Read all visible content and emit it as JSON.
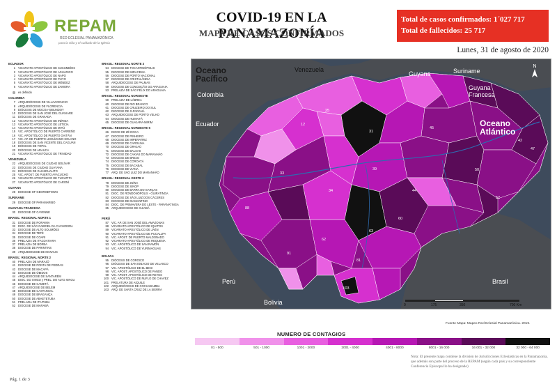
{
  "header": {
    "brand": "REPAM",
    "brand_sub": "RED ECLESIAL PANAMAZÓNICA",
    "brand_tag": "para la vida y el cuidado de la Iglesia",
    "title": "COVID-19 EN LA PANAMAZONÍA",
    "subtitle": "MAPA DE CASOS CONFIRMADOS",
    "confirmed": "Total de casos confirmados: 1´027 717",
    "deaths": "Total de fallecidos: 25 717",
    "date": "Lunes, 31 de agosto de 2020"
  },
  "map": {
    "ocean_pacific": "Oceano Pacífico",
    "ocean_atlantic": "Oceano Atlántico",
    "countries": [
      "Venezuela",
      "Colombia",
      "Guyana",
      "Suriname",
      "Guyana Francesa",
      "Ecuador",
      "Perú",
      "Bolivia",
      "Brasil"
    ],
    "scale": [
      "0",
      "175",
      "350",
      "700 Km"
    ],
    "source": "Fuente Mapa: Mapeo Red Eclesial Panamazónica. 2019."
  },
  "legend": {
    "title": "NUMERO DE CONTAGIOS",
    "bins": [
      "01 - 500",
      "501 - 1000",
      "1001 - 2000",
      "2001 - 4000",
      "4001 - 8000",
      "8001 - 16 000",
      "16 001 - 32 000",
      "32 000 - 64 000"
    ],
    "colors": [
      "#f6c8f2",
      "#f091ea",
      "#e85fe0",
      "#d630cf",
      "#b617b4",
      "#8a1087",
      "#5a0b58",
      "#111111"
    ]
  },
  "note": "Nota: El presente mapa contiene la división de Jurisdicciones Eclesiásticas en la Panamazonía, que además son parte del proceso de la REPAM (según cada país y su correspondiente Conferencia Episcopal lo ha designado)",
  "page": "Pág. 1 de 3",
  "columns": [
    [
      {
        "type": "sec",
        "text": "ECUADOR"
      },
      {
        "type": "ent",
        "n": "1",
        "text": "VICARIATO APOSTÓLICO DE SUCUMBÍOS"
      },
      {
        "type": "ent",
        "n": "2",
        "text": "VICARIATO APOSTÓLICO DE AGUARICO"
      },
      {
        "type": "ent",
        "n": "3",
        "text": "VICARIATO APOSTÓLICO DE NAPO"
      },
      {
        "type": "ent",
        "n": "4",
        "text": "VICARIATO APOSTÓLICO DE PUYO"
      },
      {
        "type": "ent",
        "n": "5",
        "text": "VICARIATO APOSTÓLICO DE MÉNDEZ"
      },
      {
        "type": "ent",
        "n": "6",
        "text": "VICARIATO APOSTÓLICO DE ZAMORA"
      },
      {
        "type": "gap"
      },
      {
        "type": "ent",
        "n": "▨",
        "text": "es definido"
      },
      {
        "type": "sec",
        "text": "COLOMBIA"
      },
      {
        "type": "ent",
        "n": "7",
        "text": "ARQUIDIÓCESIS DE VILLAVICENCIO"
      },
      {
        "type": "ent",
        "n": "8",
        "text": "ARQUIDIÓCESIS DE FLORENCIA"
      },
      {
        "type": "ent",
        "n": "9",
        "text": "DIÓCESIS DE MOCOA-SIBUNDOY"
      },
      {
        "type": "ent",
        "n": "10",
        "text": "DIÓCESIS DE SAN JOSÉ DEL GUAVIARE"
      },
      {
        "type": "ent",
        "n": "11",
        "text": "DIÓCESIS DE GRANADA"
      },
      {
        "type": "ent",
        "n": "12",
        "text": "VICARIATO APOSTÓLICO DE INÍRIDA"
      },
      {
        "type": "ent",
        "n": "13",
        "text": "VICARIATO APOSTÓLICO DE LETICIA"
      },
      {
        "type": "ent",
        "n": "14",
        "text": "VICARIATO APOSTÓLICO DE MITÚ"
      },
      {
        "type": "ent",
        "n": "15",
        "text": "VIC. APOSTÓLICO DE PUERTO CARREÑO"
      },
      {
        "type": "ent",
        "n": "16",
        "text": "VIC. APOSTÓLICO DE PUERTO GAITÁN"
      },
      {
        "type": "ent",
        "n": "17",
        "text": "VIC. AP. DE PUERTO LEGUÍZAMO-SOLANO"
      },
      {
        "type": "ent",
        "n": "18",
        "text": "DIÓCESIS DE SAN VICENTE DEL CAGUÁN"
      },
      {
        "type": "ent",
        "n": "19",
        "text": "DIÓCESIS DE YOPAL"
      },
      {
        "type": "ent",
        "n": "20",
        "text": "DIÓCESIS DE ARAUCA"
      },
      {
        "type": "ent",
        "n": "21",
        "text": "VICARIATO APOSTÓLICO DE TRINIDAD"
      },
      {
        "type": "sec",
        "text": "VENEZUELA"
      },
      {
        "type": "ent",
        "n": "22",
        "text": "ARQUIDIÓCESIS DE CIUDAD BOLÍVAR"
      },
      {
        "type": "ent",
        "n": "23",
        "text": "DIÓCESIS DE CIUDAD GUAYANA"
      },
      {
        "type": "ent",
        "n": "24",
        "text": "DIÓCESIS DE GUASDUALITO"
      },
      {
        "type": "ent",
        "n": "25",
        "text": "VIC. APOST. DE PUERTO AYACUCHO"
      },
      {
        "type": "ent",
        "n": "26",
        "text": "VICARIATO APOSTÓLICO DE TUCUPITA"
      },
      {
        "type": "ent",
        "n": "27",
        "text": "VICARIATO APOSTÓLICO DE CARONÍ"
      },
      {
        "type": "sec",
        "text": "GUYANA"
      },
      {
        "type": "ent",
        "n": "28",
        "text": "DIOCESE OF GEORGETOWN"
      },
      {
        "type": "sec",
        "text": "SURINAME"
      },
      {
        "type": "ent",
        "n": "29",
        "text": "DIOCESE OF PARAMARIBO"
      },
      {
        "type": "sec",
        "text": "GUAYANA FRANCESA"
      },
      {
        "type": "ent",
        "n": "30",
        "text": "DIOCESE OF CAYENNE"
      },
      {
        "type": "sec",
        "text": "BRASIL: REGIONAL NORTE 1"
      },
      {
        "type": "ent",
        "n": "31",
        "text": "DIOCESE DE RORAIMA"
      },
      {
        "type": "ent",
        "n": "32",
        "text": "DIOC. DE SÃO GABRIEL DA CACHOEIRA"
      },
      {
        "type": "ent",
        "n": "33",
        "text": "DIOCESE DE ALTO SOLIMÕES"
      },
      {
        "type": "ent",
        "n": "34",
        "text": "DIOCESE DE TEFÉ"
      },
      {
        "type": "ent",
        "n": "35",
        "text": "DIOCESE DE COARI"
      },
      {
        "type": "ent",
        "n": "36",
        "text": "PRELAZIA DE ITACOATIARA"
      },
      {
        "type": "ent",
        "n": "37",
        "text": "PRELAZIA DE BORBA"
      },
      {
        "type": "ent",
        "n": "38",
        "text": "DIOCESE DE PARINTINS"
      },
      {
        "type": "ent",
        "n": "39",
        "text": "ARQUIDIOCESE DE MANAUS"
      },
      {
        "type": "sec",
        "text": "BRASIL: REGIONAL NORTE 2"
      },
      {
        "type": "ent",
        "n": "40",
        "text": "PRELAZIA DE MARAJÓ"
      },
      {
        "type": "ent",
        "n": "41",
        "text": "DIOCESE DE PONTA DE PEDRAS"
      },
      {
        "type": "ent",
        "n": "42",
        "text": "DIOCESE DE MACAPÁ"
      },
      {
        "type": "ent",
        "n": "43",
        "text": "DIOCESE DE ÓBIDOS"
      },
      {
        "type": "ent",
        "n": "44",
        "text": "ARQUIDIOCESE DE SANTARÉM"
      },
      {
        "type": "ent",
        "n": "45",
        "text": "DIOC. DO XINGU y PREL. DO ALTO XINGU"
      },
      {
        "type": "ent",
        "n": "46",
        "text": "DIOCESE DE CAMETÁ"
      },
      {
        "type": "ent",
        "n": "47",
        "text": "ARQUIDIOCESE DE BELÉM"
      },
      {
        "type": "ent",
        "n": "48",
        "text": "DIOCESE DE CASTANHAL"
      },
      {
        "type": "ent",
        "n": "49",
        "text": "DIOCESE DE BRAGANÇA"
      },
      {
        "type": "ent",
        "n": "50",
        "text": "DIOCESE DE ABAETETUBA"
      },
      {
        "type": "ent",
        "n": "51",
        "text": "PRELAZIA DE ITAITUBA"
      },
      {
        "type": "ent",
        "n": "52",
        "text": "DIOCESE DE MARABÁ"
      }
    ],
    [
      {
        "type": "sec",
        "text": "BRASIL: REGIONAL NORTE 3"
      },
      {
        "type": "ent",
        "n": "54",
        "text": "DIOCESE DE TOCANTINÓPOLIS"
      },
      {
        "type": "ent",
        "n": "55",
        "text": "DIOCESE DE MIRACEMA"
      },
      {
        "type": "ent",
        "n": "56",
        "text": "DIOCESE DE PORTO NACIONAL"
      },
      {
        "type": "ent",
        "n": "57",
        "text": "DIOCESE DE CRISTALÂNDIA"
      },
      {
        "type": "ent",
        "n": "58",
        "text": "ARQUIDIOCESE DE PALMAS"
      },
      {
        "type": "ent",
        "n": "59",
        "text": "DIOCESE DE CONCEIÇÃO DO ARAGUAIA"
      },
      {
        "type": "ent",
        "n": "53",
        "text": "PRELAZIA DE SÃO FÉLIX DO ARAGUAIA"
      },
      {
        "type": "sec",
        "text": "BRASIL: REGIONAL NOROESTE"
      },
      {
        "type": "ent",
        "n": "59",
        "text": "PRELAZIA DE LÁBREA"
      },
      {
        "type": "ent",
        "n": "60",
        "text": "DIOCESE DE RIO BRANCO"
      },
      {
        "type": "ent",
        "n": "61",
        "text": "DIOCESE DE CRUZEIRO DO SUL"
      },
      {
        "type": "ent",
        "n": "62",
        "text": "DIOCESE DE JI-PARANÁ"
      },
      {
        "type": "ent",
        "n": "63",
        "text": "ARQUIDIOCESE DE PORTO VELHO"
      },
      {
        "type": "ent",
        "n": "64",
        "text": "DIOCESE DE HUMAITÁ"
      },
      {
        "type": "ent",
        "n": "65",
        "text": "DIOCESE DE GUAJARÁ-MIRIM"
      },
      {
        "type": "sec",
        "text": "BRASIL: REGIONAL NORDESTE 5"
      },
      {
        "type": "ent",
        "n": "66",
        "text": "DIOCE DE ZÉ DOCA"
      },
      {
        "type": "ent",
        "n": "67",
        "text": "DIOCESE DE PINHEIRO"
      },
      {
        "type": "ent",
        "n": "68",
        "text": "DIOCESE DE IMPERATRIZ"
      },
      {
        "type": "ent",
        "n": "69",
        "text": "DIOCESE DE CAROLINA"
      },
      {
        "type": "ent",
        "n": "70",
        "text": "DIOCESE DE GRAJAÚ"
      },
      {
        "type": "ent",
        "n": "71",
        "text": "DIOCESE DE BALSAS"
      },
      {
        "type": "ent",
        "n": "72",
        "text": "DIOCESE DE CAXIAS DO MARANHÃO"
      },
      {
        "type": "ent",
        "n": "73",
        "text": "DIOCESE DE BREJO"
      },
      {
        "type": "ent",
        "n": "74",
        "text": "DIOCESE DE COROATÁ"
      },
      {
        "type": "ent",
        "n": "75",
        "text": "DIOCESE DE BACABAL"
      },
      {
        "type": "ent",
        "n": "76",
        "text": "DIOCESE DE VIANA"
      },
      {
        "type": "ent",
        "n": "77",
        "text": "ARQ. DE SÃO LUIZ DO MARANHÃO"
      },
      {
        "type": "sec",
        "text": "BRASIL: REGIONAL OESTE 2"
      },
      {
        "type": "ent",
        "n": "78",
        "text": "DIOCESE DE JUÍNA"
      },
      {
        "type": "ent",
        "n": "79",
        "text": "DIOCESE DE SINOP"
      },
      {
        "type": "ent",
        "n": "80",
        "text": "DIOCESE DE BARRA DO GARÇAS"
      },
      {
        "type": "ent",
        "n": "81",
        "text": "DIOC. DE RONDONÓPOLIS - GUIRATINGA"
      },
      {
        "type": "ent",
        "n": "82",
        "text": "DIOCESE DE SÃO LUIZ DOS CÁCERES"
      },
      {
        "type": "ent",
        "n": "83",
        "text": "DIOCESE DE DIAMANTINO"
      },
      {
        "type": "ent",
        "n": "84",
        "text": "DIOC. DE PRIMAVERA DO LESTE - PARANATINGA"
      },
      {
        "type": "ent",
        "n": "85",
        "text": "ARQUIDIOCESE DE CUIABÁ"
      },
      {
        "type": "gap"
      },
      {
        "type": "gap"
      },
      {
        "type": "sec",
        "text": "PERÚ"
      },
      {
        "type": "ent",
        "n": "87",
        "text": "VIC. AP. DE SAN JOSÉ DEL AMAZONAS"
      },
      {
        "type": "ent",
        "n": "88",
        "text": "VICARIATO APOSTÓLICO DE IQUITOS"
      },
      {
        "type": "ent",
        "n": "89",
        "text": "VICARIATO APOSTÓLICO DE JAÉN"
      },
      {
        "type": "ent",
        "n": "90",
        "text": "VICARIATO APOSTÓLICO DE PUCALLPA"
      },
      {
        "type": "ent",
        "n": "91",
        "text": "VIC. APOST. DE PUERTO MALDONADO"
      },
      {
        "type": "ent",
        "n": "92",
        "text": "VICARIATO APOSTÓLICO DE REQUENA"
      },
      {
        "type": "ent",
        "n": "93",
        "text": "VIC. APOSTÓLICO DE SAN RAMÓN"
      },
      {
        "type": "ent",
        "n": "94",
        "text": "VIC. APOSTÓLICO DE YURIMAGUAS"
      },
      {
        "type": "gap"
      },
      {
        "type": "sec",
        "text": "BOLIVIA"
      },
      {
        "type": "ent",
        "n": "95",
        "text": "DIÓCESIS DE COROICO"
      },
      {
        "type": "ent",
        "n": "96",
        "text": "DIÓCESIS DE SAN IGNACIO DE VELASCO"
      },
      {
        "type": "ent",
        "n": "97",
        "text": "VIC. APOSTÓLICO DE EL BENI"
      },
      {
        "type": "ent",
        "n": "98",
        "text": "VIC. APOST. APOSTÓLICO DE PANDO"
      },
      {
        "type": "ent",
        "n": "99",
        "text": "VIC. APOST. APOSTÓLICO DE REYES"
      },
      {
        "type": "ent",
        "n": "100",
        "text": "VIC. APOSTÓLICO DE ÑUFLO DE CHÁVEZ"
      },
      {
        "type": "ent",
        "n": "101",
        "text": "PRELATURA DE AIQUILE"
      },
      {
        "type": "ent",
        "n": "102",
        "text": "ARQUIDIÓCESIS DE COCHABAMBA"
      },
      {
        "type": "ent",
        "n": "103",
        "text": "ARQ. DE SANTA CRUZ DE LA SIERRA"
      }
    ]
  ]
}
